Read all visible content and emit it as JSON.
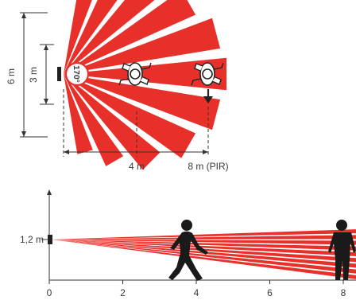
{
  "top_view": {
    "height_total": "6 m",
    "height_half": "3 m",
    "sensor_angle": "170°",
    "dist_near": "4 m",
    "dist_far": "8 m (PIR)"
  },
  "side_view": {
    "mount_height": "1,2 m",
    "x_ticks": [
      "0",
      "2",
      "4",
      "6",
      "8"
    ]
  },
  "colors": {
    "beam": "#e8302a",
    "line": "#333333",
    "figure": "#1a1a1a"
  },
  "icons": [
    "person-top-view-icon",
    "person-walking-icon",
    "person-standing-icon",
    "arrow-down-icon"
  ]
}
